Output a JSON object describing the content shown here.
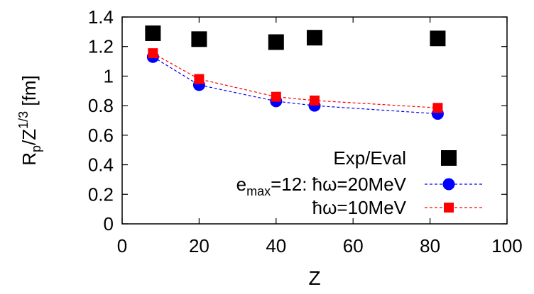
{
  "chart_data": {
    "type": "scatter",
    "title": "",
    "xlabel": "Z",
    "ylabel": {
      "base": "R",
      "sub": "p",
      "mid": "/Z",
      "sup": "1/3",
      "tail": " [fm]"
    },
    "xlim": [
      0,
      100
    ],
    "ylim": [
      0,
      1.4
    ],
    "x_ticks": [
      0,
      20,
      40,
      60,
      80,
      100
    ],
    "x_tick_labels": [
      "0",
      "20",
      "40",
      "60",
      "80",
      "100"
    ],
    "y_ticks": [
      0,
      0.2,
      0.4,
      0.6,
      0.8,
      1.0,
      1.2,
      1.4
    ],
    "y_tick_labels": [
      "0",
      "0.2",
      "0.4",
      "0.6",
      "0.8",
      "1",
      "1.2",
      "1.4"
    ],
    "grid": false,
    "legend_position": "lower-right",
    "series": [
      {
        "name": "Exp/Eval",
        "marker": "square",
        "line": false,
        "color": "#000000",
        "x": [
          8,
          20,
          40,
          50,
          82
        ],
        "y": [
          1.29,
          1.25,
          1.23,
          1.26,
          1.255
        ]
      },
      {
        "name": {
          "e": "e",
          "sub": "max",
          "rest": "=12: ħω=20MeV"
        },
        "marker": "circle",
        "line": "dashed",
        "color": "#0000ff",
        "x": [
          8,
          20,
          40,
          50,
          82
        ],
        "y": [
          1.13,
          0.94,
          0.83,
          0.8,
          0.745
        ]
      },
      {
        "name": "ħω=10MeV",
        "marker": "square-small",
        "line": "dashed",
        "color": "#ff0000",
        "x": [
          8,
          20,
          40,
          50,
          82
        ],
        "y": [
          1.155,
          0.98,
          0.86,
          0.835,
          0.785
        ]
      }
    ]
  }
}
